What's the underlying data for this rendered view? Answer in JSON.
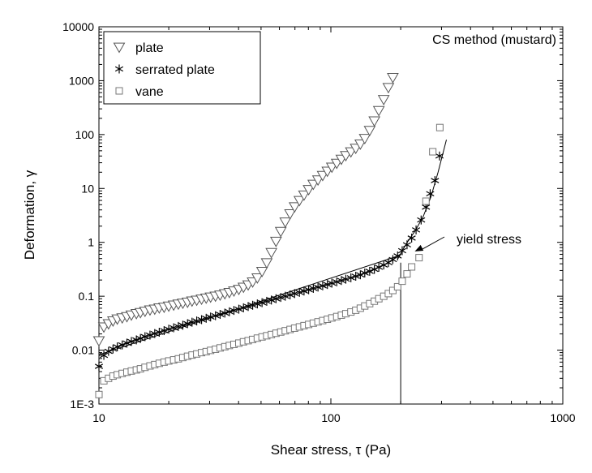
{
  "chart_data": {
    "type": "scatter",
    "title": "CS method (mustard)",
    "xlabel": "Shear stress, τ (Pa)",
    "ylabel": "Deformation, γ",
    "x_scale": "log",
    "y_scale": "log",
    "xlim": [
      10,
      1000
    ],
    "ylim": [
      0.001,
      10000
    ],
    "x_ticks": [
      10,
      100,
      1000
    ],
    "x_tick_labels": [
      "10",
      "100",
      "1000"
    ],
    "y_ticks": [
      0.001,
      0.01,
      0.1,
      1,
      10,
      100,
      1000,
      10000
    ],
    "y_tick_labels": [
      "1E-3",
      "0.01",
      "0.1",
      "1",
      "10",
      "100",
      "1000",
      "10000"
    ],
    "grid": false,
    "legend_position": "top-left",
    "series": [
      {
        "name": "plate",
        "marker": "triangle-down",
        "x": [
          10,
          10.5,
          11,
          11.5,
          12,
          12.6,
          13.2,
          13.8,
          14.5,
          15.1,
          15.8,
          16.6,
          17.4,
          18.2,
          19.1,
          20,
          21,
          22,
          23,
          24.1,
          25.2,
          26.4,
          27.7,
          29,
          30.3,
          31.8,
          33.3,
          34.9,
          36.5,
          38.2,
          40.1,
          42,
          44,
          46,
          48.2,
          50.5,
          52.9,
          55.4,
          58,
          60.8,
          63.6,
          66.7,
          69.8,
          73.2,
          76.6,
          80.2,
          84,
          88,
          92.2,
          96.6,
          101,
          106,
          111,
          116,
          122,
          128,
          134,
          140,
          147,
          154,
          161,
          169,
          177,
          185
        ],
        "y": [
          0.015,
          0.027,
          0.031,
          0.035,
          0.038,
          0.04,
          0.042,
          0.045,
          0.048,
          0.05,
          0.053,
          0.056,
          0.058,
          0.061,
          0.063,
          0.066,
          0.069,
          0.072,
          0.075,
          0.078,
          0.082,
          0.085,
          0.089,
          0.093,
          0.097,
          0.101,
          0.106,
          0.112,
          0.118,
          0.126,
          0.135,
          0.148,
          0.163,
          0.185,
          0.22,
          0.29,
          0.42,
          0.65,
          1.05,
          1.6,
          2.4,
          3.4,
          4.6,
          6,
          7.6,
          9.6,
          12,
          14.5,
          17.5,
          21,
          25,
          29.5,
          35,
          41,
          48,
          56,
          67,
          85,
          120,
          180,
          280,
          450,
          750,
          1150
        ]
      },
      {
        "name": "serrated plate",
        "marker": "asterisk",
        "x": [
          10,
          10.5,
          11,
          11.5,
          12,
          12.6,
          13.2,
          13.8,
          14.5,
          15.1,
          15.8,
          16.6,
          17.4,
          18.2,
          19.1,
          20,
          21,
          22,
          23,
          24.1,
          25.2,
          26.4,
          27.7,
          29,
          30.3,
          31.8,
          33.3,
          34.9,
          36.5,
          38.2,
          40.1,
          42,
          44,
          46,
          48.2,
          50.5,
          52.9,
          55.4,
          58,
          60.8,
          63.6,
          66.7,
          69.8,
          73.2,
          76.6,
          80.2,
          84,
          88,
          92.2,
          96.6,
          101,
          106,
          111,
          116,
          122,
          128,
          134,
          140,
          147,
          154,
          161,
          169,
          177,
          185,
          194,
          203,
          213,
          223,
          233,
          245,
          257,
          268,
          281,
          294
        ],
        "y": [
          0.005,
          0.008,
          0.0095,
          0.0105,
          0.0115,
          0.0125,
          0.0135,
          0.0145,
          0.0155,
          0.0165,
          0.0178,
          0.019,
          0.0203,
          0.0215,
          0.023,
          0.0245,
          0.026,
          0.0275,
          0.029,
          0.031,
          0.033,
          0.0348,
          0.0368,
          0.039,
          0.0412,
          0.0435,
          0.046,
          0.0487,
          0.0515,
          0.0545,
          0.0575,
          0.061,
          0.0645,
          0.068,
          0.072,
          0.076,
          0.0805,
          0.085,
          0.09,
          0.095,
          0.1,
          0.106,
          0.112,
          0.118,
          0.125,
          0.132,
          0.14,
          0.148,
          0.156,
          0.165,
          0.175,
          0.185,
          0.196,
          0.207,
          0.22,
          0.235,
          0.25,
          0.27,
          0.29,
          0.315,
          0.345,
          0.38,
          0.42,
          0.48,
          0.56,
          0.7,
          0.9,
          1.2,
          1.7,
          2.6,
          4.5,
          8,
          14,
          40
        ]
      },
      {
        "name": "vane",
        "marker": "square",
        "x": [
          10,
          10.5,
          11,
          11.5,
          12,
          12.6,
          13.2,
          13.8,
          14.5,
          15.1,
          15.8,
          16.6,
          17.4,
          18.2,
          19.1,
          20,
          21,
          22,
          23,
          24.1,
          25.2,
          26.4,
          27.7,
          29,
          30.3,
          31.8,
          33.3,
          34.9,
          36.5,
          38.2,
          40.1,
          42,
          44,
          46,
          48.2,
          50.5,
          52.9,
          55.4,
          58,
          60.8,
          63.6,
          66.7,
          69.8,
          73.2,
          76.6,
          80.2,
          84,
          88,
          92.2,
          96.6,
          101,
          106,
          111,
          116,
          122,
          128,
          134,
          140,
          147,
          154,
          161,
          169,
          177,
          185,
          194,
          203,
          213,
          223,
          240,
          257,
          275,
          295
        ],
        "y": [
          0.0015,
          0.0027,
          0.003,
          0.0033,
          0.0035,
          0.0037,
          0.0039,
          0.0041,
          0.0043,
          0.0045,
          0.0048,
          0.0051,
          0.0054,
          0.0057,
          0.006,
          0.0063,
          0.0066,
          0.0069,
          0.0073,
          0.0077,
          0.0081,
          0.0085,
          0.009,
          0.0094,
          0.0099,
          0.0104,
          0.011,
          0.0116,
          0.0122,
          0.0128,
          0.0135,
          0.0143,
          0.015,
          0.0158,
          0.0167,
          0.0176,
          0.0185,
          0.0195,
          0.0206,
          0.0217,
          0.0229,
          0.0242,
          0.0256,
          0.027,
          0.0285,
          0.03,
          0.0317,
          0.0335,
          0.0354,
          0.0374,
          0.0396,
          0.042,
          0.0446,
          0.0475,
          0.051,
          0.055,
          0.06,
          0.066,
          0.073,
          0.081,
          0.09,
          0.1,
          0.112,
          0.128,
          0.15,
          0.19,
          0.26,
          0.35,
          0.52,
          5.8,
          48,
          135
        ]
      }
    ],
    "fit_lines": [
      {
        "x": [
          10,
          200
        ],
        "y": [
          0.0082,
          0.58
        ]
      },
      {
        "x": [
          195,
          205,
          215,
          230,
          250,
          270,
          290,
          315
        ],
        "y": [
          0.5,
          0.75,
          1.05,
          1.6,
          3,
          7,
          20,
          80
        ]
      },
      {
        "x": [
          200,
          200
        ],
        "y": [
          0.001,
          0.42
        ]
      }
    ],
    "annotations": [
      {
        "text": "yield stress",
        "x": 360,
        "y": 1.25,
        "arrow_to": [
          230,
          0.68
        ]
      }
    ]
  }
}
